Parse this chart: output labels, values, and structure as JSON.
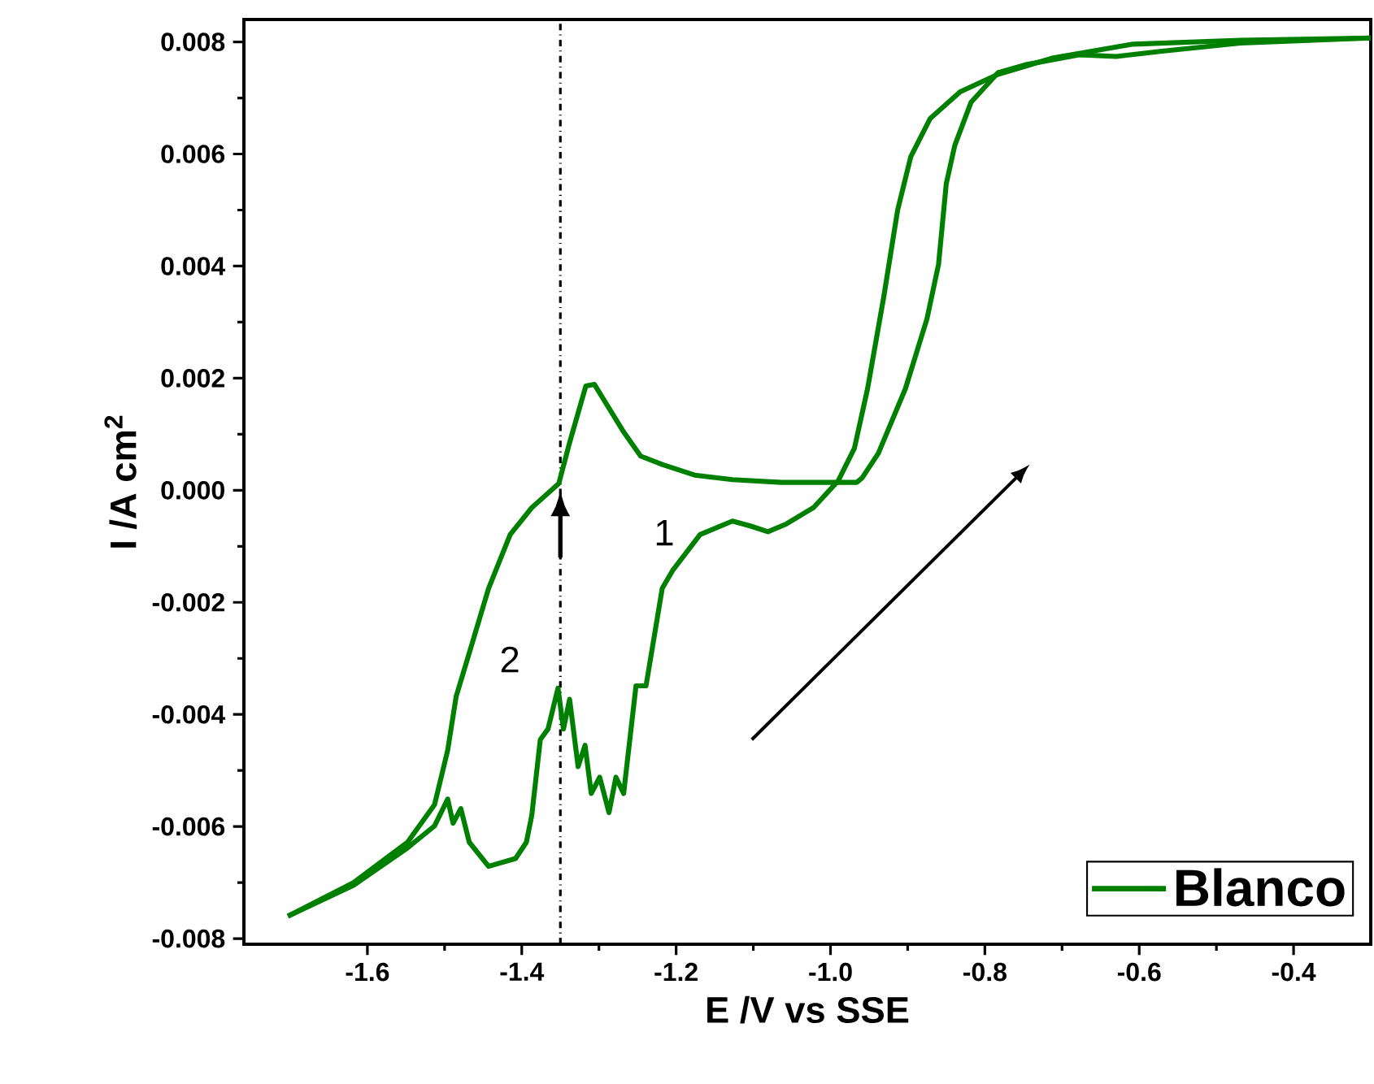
{
  "chart_data": {
    "type": "line",
    "xlabel": "E /V vs SSE",
    "ylabel": "I /A cm$^{2}$",
    "xlim": [
      -1.76,
      -0.3
    ],
    "ylim": [
      -0.0081,
      0.0084
    ],
    "xticks": [
      -1.6,
      -1.4,
      -1.2,
      {
        "value": -1.0,
        "label": "-1.0"
      },
      -0.8,
      -0.6,
      -0.4
    ],
    "yticks": [
      {
        "value": -0.008,
        "label": "-0.008"
      },
      {
        "value": -0.006,
        "label": "-0.006"
      },
      {
        "value": -0.004,
        "label": "-0.004"
      },
      {
        "value": -0.002,
        "label": "-0.002"
      },
      {
        "value": 0,
        "label": "0.000"
      },
      {
        "value": 0.002,
        "label": "0.002"
      },
      {
        "value": 0.004,
        "label": "0.004"
      },
      {
        "value": 0.006,
        "label": "0.006"
      },
      {
        "value": 0.008,
        "label": "0.008"
      }
    ],
    "grid": false,
    "legend": "bottom right",
    "marker": "none",
    "line_style": "solid",
    "series": [
      {
        "name": "Blanco",
        "color": "#008000",
        "x": [
          -1.703,
          -1.618,
          -1.548,
          -1.513,
          -1.496,
          -1.489,
          -1.479,
          -1.468,
          -1.443,
          -1.408,
          -1.394,
          -1.387,
          -1.376,
          -1.366,
          -1.353,
          -1.346,
          -1.338,
          -1.327,
          -1.318,
          -1.31,
          -1.299,
          -1.287,
          -1.278,
          -1.268,
          -1.252,
          -1.239,
          -1.218,
          -1.204,
          -1.169,
          -1.127,
          -1.103,
          -1.081,
          -1.057,
          -1.022,
          -0.99,
          -0.969,
          -0.952,
          -0.931,
          -0.913,
          -0.896,
          -0.871,
          -0.832,
          -0.783,
          -0.713,
          -0.608,
          -0.468,
          -0.3
        ],
        "values": [
          -0.0076,
          -0.00705,
          -0.00638,
          -0.00599,
          -0.00551,
          -0.00594,
          -0.00568,
          -0.00628,
          -0.00671,
          -0.00657,
          -0.00628,
          -0.0058,
          -0.00445,
          -0.00426,
          -0.00353,
          -0.00426,
          -0.00373,
          -0.00493,
          -0.00455,
          -0.00541,
          -0.00512,
          -0.00575,
          -0.00512,
          -0.00541,
          -0.00349,
          -0.00349,
          -0.00175,
          -0.00142,
          -0.00079,
          -0.00055,
          -0.00064,
          -0.00074,
          -0.0006,
          -0.00031,
          0.00017,
          0.00075,
          0.00181,
          0.00345,
          0.005,
          0.00595,
          0.00663,
          0.00711,
          0.00742,
          0.00771,
          0.00796,
          0.00803,
          0.00807
        ]
      },
      {
        "color": "#008000",
        "x": [
          -0.3,
          -0.468,
          -0.573,
          -0.63,
          -0.678,
          -0.748,
          -0.783,
          -0.818,
          -0.839,
          -0.85,
          -0.86,
          -0.875,
          -0.903,
          -0.938,
          -0.959,
          -0.966,
          -1.064,
          -1.127,
          -1.176,
          -1.218,
          -1.246,
          -1.268,
          -1.306,
          -1.317,
          -1.338,
          -1.352,
          -1.387,
          -1.415,
          -1.443,
          -1.464,
          -1.485,
          -1.496,
          -1.513,
          -1.548,
          -1.618,
          -1.703
        ],
        "values": [
          0.00807,
          0.00798,
          0.00783,
          0.00774,
          0.00777,
          0.00759,
          0.00745,
          0.00692,
          0.00615,
          0.00547,
          0.00403,
          0.00306,
          0.00181,
          0.00066,
          0.00022,
          0.00014,
          0.00014,
          0.00019,
          0.00027,
          0.00046,
          0.00061,
          0.00104,
          0.00189,
          0.00186,
          0.00085,
          0.00012,
          -0.00031,
          -0.00079,
          -0.00175,
          -0.00272,
          -0.00368,
          -0.00464,
          -0.00561,
          -0.00628,
          -0.007,
          -0.0076
        ]
      }
    ],
    "ref_lines": [
      {
        "axis": "x",
        "value": -1.35,
        "color": "#000000",
        "line_style": "dashdotted"
      }
    ],
    "annotations": [
      "1",
      "2"
    ]
  }
}
